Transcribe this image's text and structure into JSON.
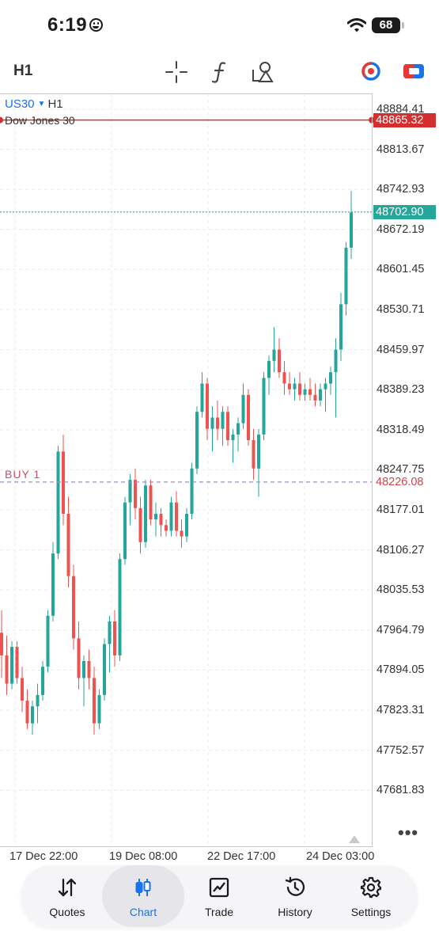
{
  "status_bar": {
    "time": "6:19",
    "battery": "68"
  },
  "toolbar": {
    "timeframe": "H1",
    "icons": [
      "crosshair-icon",
      "function-icon",
      "objects-icon",
      "color-scheme-icon",
      "account-icon"
    ]
  },
  "chart": {
    "symbol": "US30",
    "symbol_timeframe": "H1",
    "description": "Dow Jones 30",
    "order_label": "BUY 1",
    "order_price": "48226.08",
    "alert_price": "48865.32",
    "current_price": "48702.90",
    "colors": {
      "bull": "#26a69a",
      "bear": "#ef5350",
      "alert": "#d32f2f",
      "bid": "#26a69a",
      "order": "#9e8fb5"
    },
    "price_ticks": [
      "48884.41",
      "48813.67",
      "48742.93",
      "48672.19",
      "48601.45",
      "48530.71",
      "48459.97",
      "48389.23",
      "48318.49",
      "48247.75",
      "48177.01",
      "48106.27",
      "48035.53",
      "47964.79",
      "47894.05",
      "47823.31",
      "47752.57",
      "47681.83"
    ],
    "time_ticks": [
      "17 Dec 22:00",
      "19 Dec 08:00",
      "22 Dec 17:00",
      "24 Dec 03:00"
    ]
  },
  "chart_data": {
    "type": "candlestick",
    "y_axis": {
      "min": 47640,
      "max": 48905
    },
    "candles": [
      [
        47960,
        48000,
        47880,
        47920
      ],
      [
        47920,
        47955,
        47850,
        47870
      ],
      [
        47870,
        47945,
        47860,
        47935
      ],
      [
        47935,
        47945,
        47870,
        47880
      ],
      [
        47880,
        47900,
        47820,
        47840
      ],
      [
        47840,
        47860,
        47790,
        47800
      ],
      [
        47800,
        47840,
        47780,
        47830
      ],
      [
        47830,
        47870,
        47800,
        47850
      ],
      [
        47850,
        47910,
        47840,
        47900
      ],
      [
        47900,
        48000,
        47890,
        47990
      ],
      [
        47990,
        48120,
        47980,
        48100
      ],
      [
        48100,
        48290,
        48090,
        48280
      ],
      [
        48280,
        48310,
        48150,
        48170
      ],
      [
        48170,
        48200,
        48040,
        48060
      ],
      [
        48060,
        48080,
        47930,
        47950
      ],
      [
        47950,
        47980,
        47860,
        47880
      ],
      [
        47880,
        47920,
        47830,
        47910
      ],
      [
        47910,
        47930,
        47860,
        47880
      ],
      [
        47880,
        47900,
        47780,
        47800
      ],
      [
        47800,
        47860,
        47790,
        47850
      ],
      [
        47850,
        47950,
        47840,
        47940
      ],
      [
        47940,
        47990,
        47890,
        47980
      ],
      [
        47980,
        48000,
        47900,
        47920
      ],
      [
        47920,
        48100,
        47910,
        48090
      ],
      [
        48090,
        48200,
        48080,
        48190
      ],
      [
        48190,
        48240,
        48150,
        48230
      ],
      [
        48230,
        48250,
        48160,
        48180
      ],
      [
        48180,
        48200,
        48100,
        48120
      ],
      [
        48120,
        48230,
        48110,
        48220
      ],
      [
        48220,
        48230,
        48150,
        48160
      ],
      [
        48160,
        48190,
        48130,
        48170
      ],
      [
        48170,
        48180,
        48130,
        48150
      ],
      [
        48150,
        48160,
        48130,
        48140
      ],
      [
        48140,
        48200,
        48130,
        48190
      ],
      [
        48190,
        48210,
        48130,
        48140
      ],
      [
        48140,
        48160,
        48110,
        48130
      ],
      [
        48130,
        48180,
        48120,
        48170
      ],
      [
        48170,
        48260,
        48160,
        48250
      ],
      [
        48250,
        48360,
        48240,
        48350
      ],
      [
        48350,
        48420,
        48340,
        48400
      ],
      [
        48400,
        48410,
        48300,
        48320
      ],
      [
        48320,
        48360,
        48280,
        48340
      ],
      [
        48340,
        48370,
        48300,
        48320
      ],
      [
        48320,
        48360,
        48290,
        48350
      ],
      [
        48350,
        48360,
        48290,
        48300
      ],
      [
        48300,
        48320,
        48260,
        48310
      ],
      [
        48310,
        48340,
        48280,
        48330
      ],
      [
        48330,
        48400,
        48320,
        48380
      ],
      [
        48380,
        48390,
        48290,
        48300
      ],
      [
        48300,
        48320,
        48230,
        48250
      ],
      [
        48250,
        48320,
        48200,
        48310
      ],
      [
        48310,
        48420,
        48300,
        48410
      ],
      [
        48410,
        48450,
        48380,
        48440
      ],
      [
        48440,
        48500,
        48420,
        48460
      ],
      [
        48460,
        48480,
        48410,
        48420
      ],
      [
        48420,
        48440,
        48380,
        48400
      ],
      [
        48400,
        48420,
        48380,
        48390
      ],
      [
        48390,
        48410,
        48370,
        48400
      ],
      [
        48400,
        48420,
        48370,
        48380
      ],
      [
        48380,
        48400,
        48370,
        48390
      ],
      [
        48390,
        48410,
        48370,
        48380
      ],
      [
        48380,
        48400,
        48360,
        48370
      ],
      [
        48370,
        48400,
        48360,
        48390
      ],
      [
        48390,
        48410,
        48350,
        48400
      ],
      [
        48400,
        48430,
        48380,
        48420
      ],
      [
        48420,
        48480,
        48340,
        48460
      ],
      [
        48460,
        48560,
        48440,
        48540
      ],
      [
        48540,
        48650,
        48520,
        48640
      ],
      [
        48640,
        48740,
        48620,
        48702
      ]
    ]
  },
  "tab_bar": {
    "tabs": [
      {
        "label": "Quotes",
        "icon": "quotes-icon"
      },
      {
        "label": "Chart",
        "icon": "chart-icon"
      },
      {
        "label": "Trade",
        "icon": "trade-icon"
      },
      {
        "label": "History",
        "icon": "history-icon"
      },
      {
        "label": "Settings",
        "icon": "settings-icon"
      }
    ],
    "active": "Chart"
  }
}
